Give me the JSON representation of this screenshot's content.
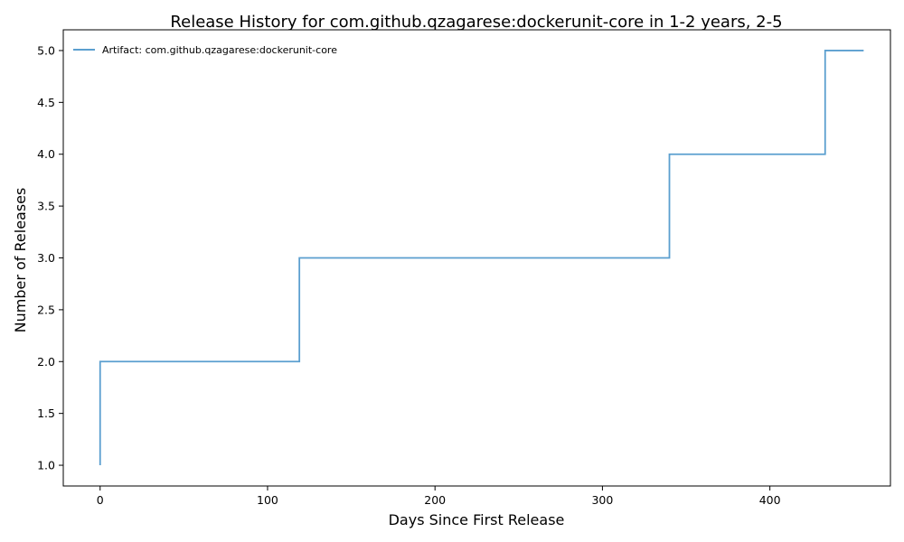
{
  "chart_data": {
    "type": "line",
    "drawstyle": "steps-post",
    "title": "Release History for com.github.qzagarese:dockerunit-core in 1-2 years, 2-5",
    "xlabel": "Days Since First Release",
    "ylabel": "Number of Releases",
    "xlim": [
      -22,
      472
    ],
    "ylim": [
      0.8,
      5.2
    ],
    "xticks": [
      0,
      100,
      200,
      300,
      400
    ],
    "xtick_labels": [
      "0",
      "100",
      "200",
      "300",
      "400"
    ],
    "yticks": [
      1.0,
      1.5,
      2.0,
      2.5,
      3.0,
      3.5,
      4.0,
      4.5,
      5.0
    ],
    "ytick_labels": [
      "1.0",
      "1.5",
      "2.0",
      "2.5",
      "3.0",
      "3.5",
      "4.0",
      "4.5",
      "5.0"
    ],
    "grid": false,
    "legend_position": "top-left",
    "series": [
      {
        "name": "Artifact: com.github.qzagarese:dockerunit-core",
        "color": "#5b9fcf",
        "x": [
          0,
          0,
          119,
          340,
          433,
          456
        ],
        "y": [
          1,
          2,
          3,
          4,
          5,
          5
        ]
      }
    ]
  }
}
